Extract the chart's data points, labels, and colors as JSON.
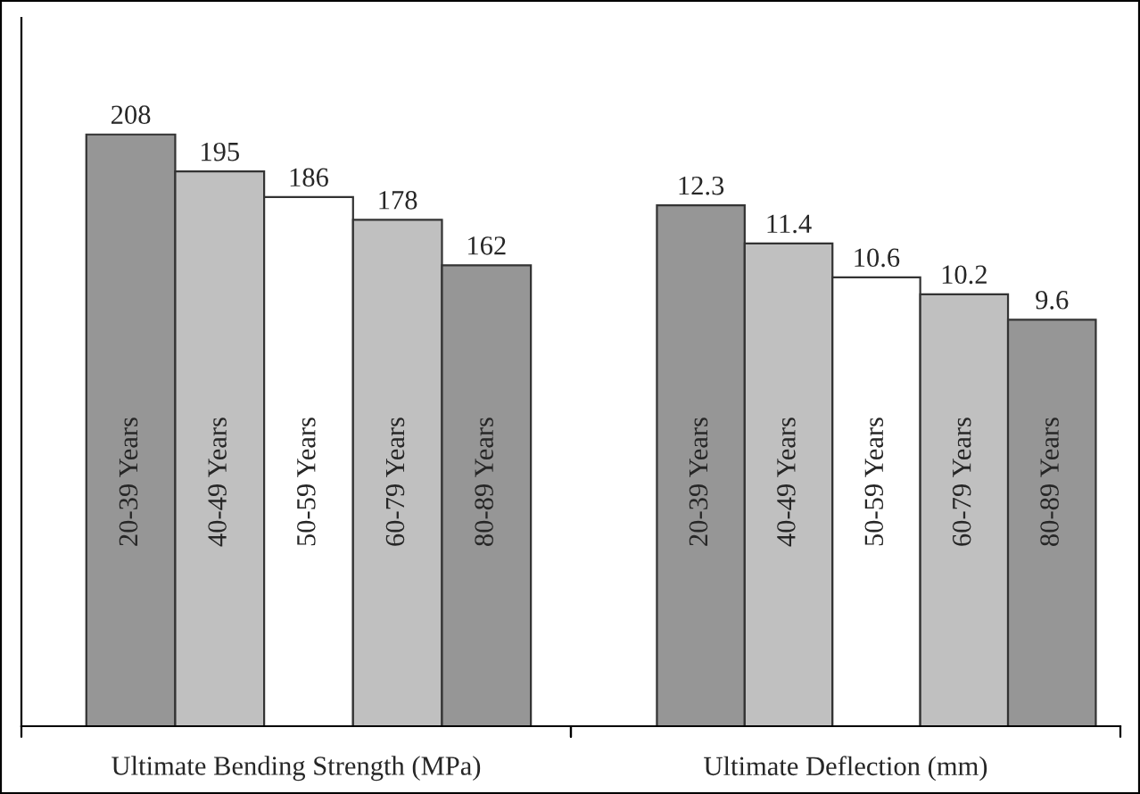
{
  "chart_data": [
    {
      "type": "bar",
      "categories": [
        "20-39 Years",
        "40-49 Years",
        "50-59 Years",
        "60-79 Years",
        "80-89 Years"
      ],
      "values": [
        208,
        195,
        186,
        178,
        162
      ],
      "colors": [
        "#969696",
        "#c0c0c0",
        "#ffffff",
        "#c0c0c0",
        "#969696"
      ],
      "xlabel": "Ultimate Bending Strength (MPa)",
      "data_labels": true,
      "ylim": [
        0,
        249
      ]
    },
    {
      "type": "bar",
      "categories": [
        "20-39 Years",
        "40-49 Years",
        "50-59 Years",
        "60-79 Years",
        "80-89 Years"
      ],
      "values": [
        12.3,
        11.4,
        10.6,
        10.2,
        9.6
      ],
      "colors": [
        "#969696",
        "#c0c0c0",
        "#ffffff",
        "#c0c0c0",
        "#969696"
      ],
      "xlabel": "Ultimate Deflection (mm)",
      "data_labels": true
    }
  ]
}
